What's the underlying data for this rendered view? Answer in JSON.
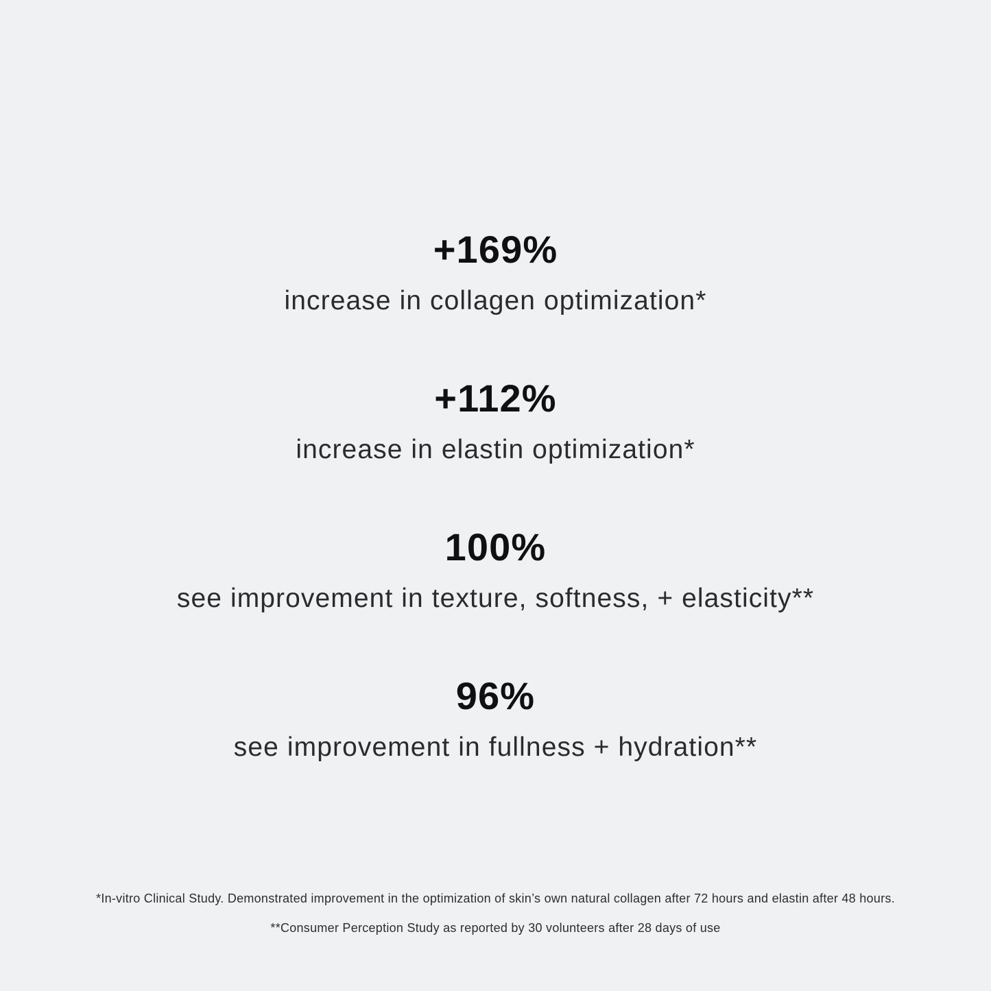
{
  "page": {
    "background_color": "#f0f1f2",
    "heading_color": "#101010",
    "body_text_color": "#2b2b2b"
  },
  "stats": [
    {
      "value": "+169%",
      "label": "increase in collagen optimization*"
    },
    {
      "value": "+112%",
      "label": "increase in elastin optimization*"
    },
    {
      "value": "100%",
      "label": "see improvement in texture, softness, + elasticity**"
    },
    {
      "value": "96%",
      "label": "see improvement in fullness + hydration**"
    }
  ],
  "footnotes": [
    "*In-vitro Clinical Study. Demonstrated improvement in the optimization of skin’s own natural collagen after 72 hours and elastin after 48 hours.",
    "**Consumer Perception Study as reported by 30 volunteers after 28 days of use"
  ]
}
